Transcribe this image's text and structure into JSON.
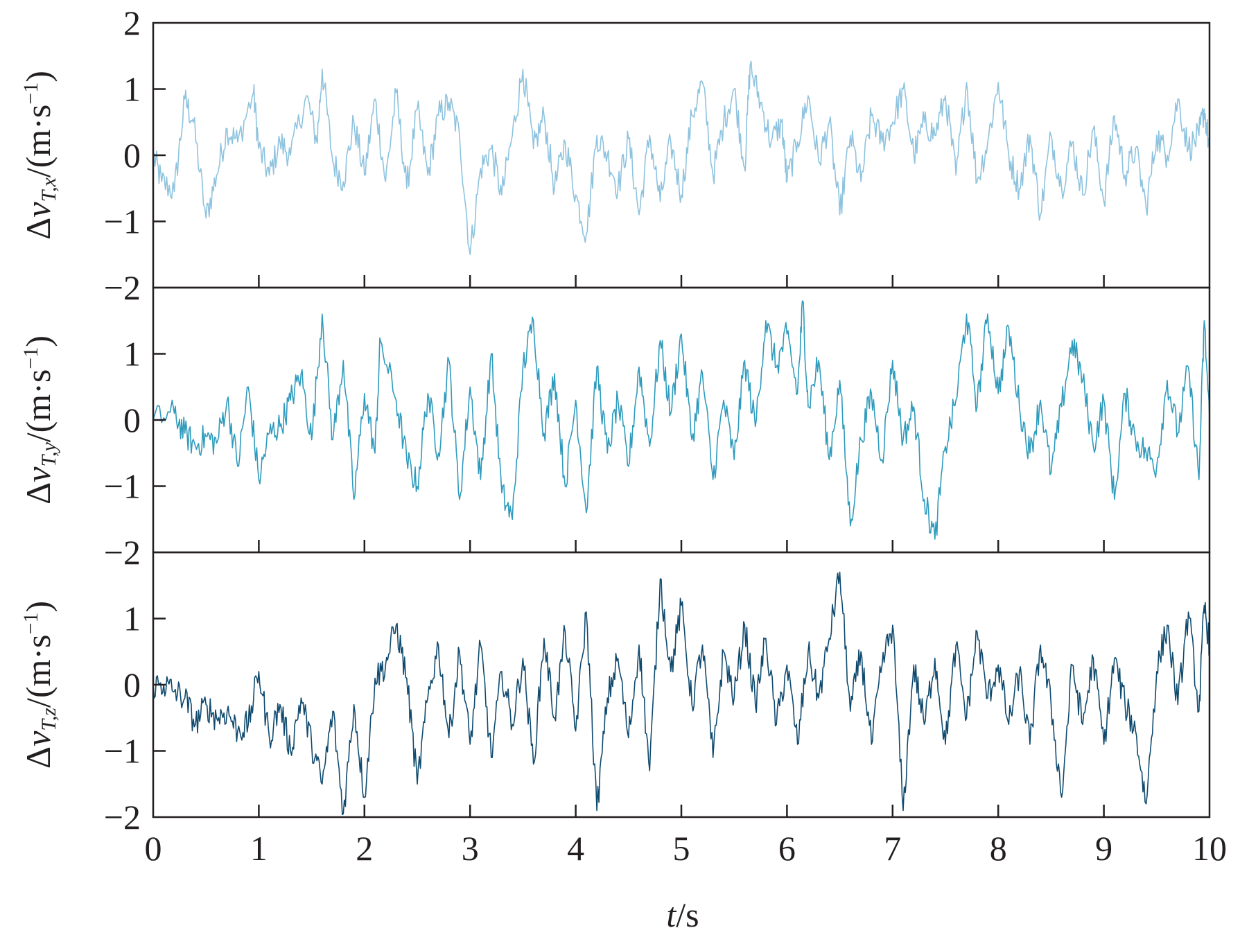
{
  "figure": {
    "xlabel_italic": "t",
    "xlabel_rest": "/s",
    "xticks": [
      0,
      1,
      2,
      3,
      4,
      5,
      6,
      7,
      8,
      9,
      10
    ]
  },
  "chart_data": [
    {
      "type": "line",
      "color": "#8ec3df",
      "ylabel": {
        "delta": "Δ",
        "v": "v",
        "sub": "T,x",
        "unit": "/(m·s",
        "exp": "−1",
        "close": ")"
      },
      "xlim": [
        0,
        10
      ],
      "ylim": [
        -2,
        2
      ],
      "yticks": [
        "2",
        "1",
        "0",
        "−1",
        "−2"
      ],
      "knots": [
        [
          0.0,
          0.0
        ],
        [
          0.08,
          -0.4
        ],
        [
          0.2,
          -0.55
        ],
        [
          0.3,
          0.85
        ],
        [
          0.38,
          0.5
        ],
        [
          0.5,
          -0.95
        ],
        [
          0.6,
          -0.3
        ],
        [
          0.7,
          0.4
        ],
        [
          0.8,
          0.2
        ],
        [
          0.95,
          0.95
        ],
        [
          1.0,
          0.1
        ],
        [
          1.1,
          -0.3
        ],
        [
          1.2,
          0.2
        ],
        [
          1.3,
          0.0
        ],
        [
          1.45,
          0.9
        ],
        [
          1.55,
          0.2
        ],
        [
          1.6,
          1.3
        ],
        [
          1.7,
          -0.1
        ],
        [
          1.8,
          -0.4
        ],
        [
          1.9,
          0.5
        ],
        [
          2.0,
          -0.3
        ],
        [
          2.1,
          0.85
        ],
        [
          2.2,
          -0.4
        ],
        [
          2.3,
          0.95
        ],
        [
          2.4,
          -0.5
        ],
        [
          2.5,
          0.7
        ],
        [
          2.6,
          -0.3
        ],
        [
          2.7,
          0.6
        ],
        [
          2.8,
          0.8
        ],
        [
          2.9,
          0.3
        ],
        [
          3.0,
          -1.5
        ],
        [
          3.1,
          -0.2
        ],
        [
          3.2,
          0.1
        ],
        [
          3.3,
          -0.6
        ],
        [
          3.4,
          0.3
        ],
        [
          3.5,
          1.3
        ],
        [
          3.6,
          0.1
        ],
        [
          3.7,
          0.6
        ],
        [
          3.8,
          -0.5
        ],
        [
          3.9,
          0.2
        ],
        [
          4.0,
          -0.6
        ],
        [
          4.1,
          -1.2
        ],
        [
          4.2,
          0.3
        ],
        [
          4.3,
          0.0
        ],
        [
          4.4,
          -0.5
        ],
        [
          4.5,
          0.25
        ],
        [
          4.6,
          -0.9
        ],
        [
          4.7,
          0.3
        ],
        [
          4.8,
          -0.7
        ],
        [
          4.9,
          0.2
        ],
        [
          5.0,
          -0.6
        ],
        [
          5.1,
          0.6
        ],
        [
          5.2,
          1.1
        ],
        [
          5.3,
          -0.3
        ],
        [
          5.4,
          0.5
        ],
        [
          5.5,
          1.0
        ],
        [
          5.6,
          -0.2
        ],
        [
          5.65,
          1.35
        ],
        [
          5.75,
          0.8
        ],
        [
          5.85,
          0.2
        ],
        [
          5.95,
          0.5
        ],
        [
          6.0,
          -0.4
        ],
        [
          6.1,
          0.2
        ],
        [
          6.2,
          0.9
        ],
        [
          6.3,
          -0.1
        ],
        [
          6.4,
          0.5
        ],
        [
          6.5,
          -0.9
        ],
        [
          6.6,
          0.3
        ],
        [
          6.7,
          -0.4
        ],
        [
          6.8,
          0.6
        ],
        [
          6.9,
          0.2
        ],
        [
          7.0,
          0.5
        ],
        [
          7.1,
          1.0
        ],
        [
          7.2,
          0.0
        ],
        [
          7.3,
          0.5
        ],
        [
          7.4,
          0.3
        ],
        [
          7.5,
          0.9
        ],
        [
          7.6,
          -0.3
        ],
        [
          7.7,
          1.1
        ],
        [
          7.8,
          -0.4
        ],
        [
          7.9,
          0.2
        ],
        [
          8.0,
          1.1
        ],
        [
          8.1,
          0.0
        ],
        [
          8.2,
          -0.5
        ],
        [
          8.3,
          0.3
        ],
        [
          8.4,
          -0.9
        ],
        [
          8.5,
          0.3
        ],
        [
          8.6,
          -0.5
        ],
        [
          8.7,
          0.2
        ],
        [
          8.8,
          -0.6
        ],
        [
          8.9,
          0.4
        ],
        [
          9.0,
          -0.7
        ],
        [
          9.1,
          0.6
        ],
        [
          9.2,
          -0.3
        ],
        [
          9.3,
          0.1
        ],
        [
          9.4,
          -0.8
        ],
        [
          9.5,
          0.3
        ],
        [
          9.6,
          0.0
        ],
        [
          9.7,
          0.85
        ],
        [
          9.8,
          0.1
        ],
        [
          9.9,
          0.3
        ],
        [
          9.95,
          0.7
        ],
        [
          10.0,
          0.1
        ]
      ]
    },
    {
      "type": "line",
      "color": "#2e9bbd",
      "ylabel": {
        "delta": "Δ",
        "v": "v",
        "sub": "T,y",
        "unit": "/(m·s",
        "exp": "−1",
        "close": ")"
      },
      "xlim": [
        0,
        10
      ],
      "ylim": [
        -2,
        2
      ],
      "yticks": [
        "2",
        "1",
        "0",
        "−1",
        "−2"
      ],
      "knots": [
        [
          0.0,
          0.0
        ],
        [
          0.2,
          0.1
        ],
        [
          0.3,
          -0.2
        ],
        [
          0.4,
          -0.4
        ],
        [
          0.5,
          -0.25
        ],
        [
          0.6,
          -0.35
        ],
        [
          0.7,
          0.3
        ],
        [
          0.8,
          -0.7
        ],
        [
          0.9,
          0.5
        ],
        [
          1.0,
          -0.9
        ],
        [
          1.1,
          -0.2
        ],
        [
          1.2,
          -0.1
        ],
        [
          1.3,
          0.3
        ],
        [
          1.4,
          0.7
        ],
        [
          1.5,
          -0.3
        ],
        [
          1.6,
          1.6
        ],
        [
          1.7,
          -0.3
        ],
        [
          1.8,
          0.9
        ],
        [
          1.9,
          -1.2
        ],
        [
          2.0,
          0.4
        ],
        [
          2.1,
          -0.5
        ],
        [
          2.15,
          1.2
        ],
        [
          2.3,
          0.3
        ],
        [
          2.4,
          -0.6
        ],
        [
          2.5,
          -1.0
        ],
        [
          2.6,
          0.4
        ],
        [
          2.7,
          -0.5
        ],
        [
          2.8,
          0.9
        ],
        [
          2.9,
          -1.2
        ],
        [
          3.0,
          0.5
        ],
        [
          3.1,
          -0.9
        ],
        [
          3.2,
          1.0
        ],
        [
          3.3,
          -1.1
        ],
        [
          3.4,
          -1.5
        ],
        [
          3.5,
          0.8
        ],
        [
          3.6,
          1.5
        ],
        [
          3.7,
          -0.2
        ],
        [
          3.8,
          0.7
        ],
        [
          3.9,
          -1.0
        ],
        [
          4.0,
          0.3
        ],
        [
          4.1,
          -1.4
        ],
        [
          4.2,
          0.8
        ],
        [
          4.3,
          -0.5
        ],
        [
          4.4,
          0.3
        ],
        [
          4.5,
          -0.7
        ],
        [
          4.6,
          0.8
        ],
        [
          4.7,
          -0.4
        ],
        [
          4.8,
          1.2
        ],
        [
          4.9,
          0.1
        ],
        [
          5.0,
          1.3
        ],
        [
          5.1,
          -0.3
        ],
        [
          5.2,
          0.7
        ],
        [
          5.3,
          -0.9
        ],
        [
          5.4,
          0.3
        ],
        [
          5.5,
          -0.6
        ],
        [
          5.6,
          0.9
        ],
        [
          5.7,
          -0.1
        ],
        [
          5.8,
          1.5
        ],
        [
          5.9,
          0.8
        ],
        [
          6.0,
          1.3
        ],
        [
          6.1,
          0.4
        ],
        [
          6.15,
          1.8
        ],
        [
          6.2,
          0.2
        ],
        [
          6.3,
          0.9
        ],
        [
          6.4,
          -0.6
        ],
        [
          6.5,
          0.6
        ],
        [
          6.6,
          -1.6
        ],
        [
          6.7,
          -0.3
        ],
        [
          6.8,
          0.4
        ],
        [
          6.9,
          -0.6
        ],
        [
          7.0,
          0.9
        ],
        [
          7.1,
          -0.3
        ],
        [
          7.2,
          0.2
        ],
        [
          7.3,
          -1.2
        ],
        [
          7.4,
          -1.8
        ],
        [
          7.5,
          -0.4
        ],
        [
          7.6,
          0.3
        ],
        [
          7.7,
          1.6
        ],
        [
          7.8,
          0.2
        ],
        [
          7.9,
          1.6
        ],
        [
          8.0,
          0.4
        ],
        [
          8.1,
          1.4
        ],
        [
          8.2,
          0.2
        ],
        [
          8.3,
          -0.5
        ],
        [
          8.4,
          0.3
        ],
        [
          8.5,
          -0.8
        ],
        [
          8.6,
          0.2
        ],
        [
          8.7,
          1.2
        ],
        [
          8.8,
          0.6
        ],
        [
          8.9,
          -0.4
        ],
        [
          9.0,
          0.3
        ],
        [
          9.1,
          -1.2
        ],
        [
          9.2,
          0.4
        ],
        [
          9.3,
          -0.3
        ],
        [
          9.4,
          -0.5
        ],
        [
          9.5,
          -0.7
        ],
        [
          9.6,
          0.6
        ],
        [
          9.7,
          -0.2
        ],
        [
          9.8,
          0.8
        ],
        [
          9.9,
          -0.9
        ],
        [
          9.95,
          1.5
        ],
        [
          10.0,
          0.0
        ]
      ]
    },
    {
      "type": "line",
      "color": "#0f4a6e",
      "ylabel": {
        "delta": "Δ",
        "v": "v",
        "sub": "T,z",
        "unit": "/(m·s",
        "exp": "−1",
        "close": ")"
      },
      "xlim": [
        0,
        10
      ],
      "ylim": [
        -2,
        2
      ],
      "yticks": [
        "2",
        "1",
        "0",
        "−1",
        "−2"
      ],
      "knots": [
        [
          0.0,
          0.0
        ],
        [
          0.1,
          0.0
        ],
        [
          0.2,
          -0.1
        ],
        [
          0.3,
          -0.2
        ],
        [
          0.4,
          -0.6
        ],
        [
          0.5,
          -0.3
        ],
        [
          0.6,
          -0.5
        ],
        [
          0.7,
          -0.4
        ],
        [
          0.8,
          -0.7
        ],
        [
          0.9,
          -0.6
        ],
        [
          1.0,
          0.2
        ],
        [
          1.1,
          -0.8
        ],
        [
          1.2,
          -0.3
        ],
        [
          1.3,
          -1.0
        ],
        [
          1.4,
          -0.2
        ],
        [
          1.5,
          -0.9
        ],
        [
          1.6,
          -1.5
        ],
        [
          1.7,
          -0.4
        ],
        [
          1.8,
          -1.95
        ],
        [
          1.9,
          -0.3
        ],
        [
          2.0,
          -1.7
        ],
        [
          2.1,
          0.1
        ],
        [
          2.2,
          0.3
        ],
        [
          2.3,
          0.9
        ],
        [
          2.4,
          0.1
        ],
        [
          2.5,
          -1.5
        ],
        [
          2.6,
          -0.2
        ],
        [
          2.7,
          0.6
        ],
        [
          2.8,
          -0.8
        ],
        [
          2.9,
          0.5
        ],
        [
          3.0,
          -0.9
        ],
        [
          3.1,
          0.6
        ],
        [
          3.2,
          -1.1
        ],
        [
          3.3,
          0.2
        ],
        [
          3.4,
          -0.6
        ],
        [
          3.5,
          0.4
        ],
        [
          3.6,
          -1.2
        ],
        [
          3.7,
          0.7
        ],
        [
          3.8,
          -0.5
        ],
        [
          3.9,
          0.8
        ],
        [
          4.0,
          -0.7
        ],
        [
          4.1,
          1.1
        ],
        [
          4.2,
          -1.9
        ],
        [
          4.3,
          -0.2
        ],
        [
          4.4,
          0.4
        ],
        [
          4.5,
          -0.8
        ],
        [
          4.6,
          0.6
        ],
        [
          4.7,
          -1.3
        ],
        [
          4.8,
          1.6
        ],
        [
          4.9,
          0.2
        ],
        [
          5.0,
          1.2
        ],
        [
          5.1,
          -0.3
        ],
        [
          5.2,
          0.6
        ],
        [
          5.3,
          -1.1
        ],
        [
          5.4,
          0.5
        ],
        [
          5.5,
          -0.2
        ],
        [
          5.6,
          0.9
        ],
        [
          5.7,
          -0.3
        ],
        [
          5.8,
          0.7
        ],
        [
          5.9,
          -0.6
        ],
        [
          6.0,
          0.3
        ],
        [
          6.1,
          -0.9
        ],
        [
          6.2,
          0.5
        ],
        [
          6.3,
          -0.2
        ],
        [
          6.4,
          0.7
        ],
        [
          6.5,
          1.7
        ],
        [
          6.6,
          -0.4
        ],
        [
          6.7,
          0.5
        ],
        [
          6.8,
          -0.9
        ],
        [
          6.9,
          0.3
        ],
        [
          7.0,
          0.9
        ],
        [
          7.1,
          -1.9
        ],
        [
          7.2,
          0.3
        ],
        [
          7.3,
          -0.6
        ],
        [
          7.4,
          0.4
        ],
        [
          7.5,
          -0.9
        ],
        [
          7.6,
          0.6
        ],
        [
          7.7,
          -0.5
        ],
        [
          7.8,
          0.8
        ],
        [
          7.9,
          -0.2
        ],
        [
          8.0,
          0.3
        ],
        [
          8.1,
          -0.6
        ],
        [
          8.2,
          0.2
        ],
        [
          8.3,
          -0.9
        ],
        [
          8.4,
          0.6
        ],
        [
          8.5,
          -0.3
        ],
        [
          8.6,
          -1.7
        ],
        [
          8.7,
          0.3
        ],
        [
          8.8,
          -0.6
        ],
        [
          8.9,
          0.4
        ],
        [
          9.0,
          -0.9
        ],
        [
          9.1,
          0.4
        ],
        [
          9.2,
          -0.3
        ],
        [
          9.3,
          -0.7
        ],
        [
          9.4,
          -1.8
        ],
        [
          9.5,
          0.2
        ],
        [
          9.6,
          0.9
        ],
        [
          9.7,
          -0.3
        ],
        [
          9.8,
          1.1
        ],
        [
          9.9,
          -0.4
        ],
        [
          9.95,
          1.2
        ],
        [
          10.0,
          0.6
        ]
      ]
    }
  ]
}
